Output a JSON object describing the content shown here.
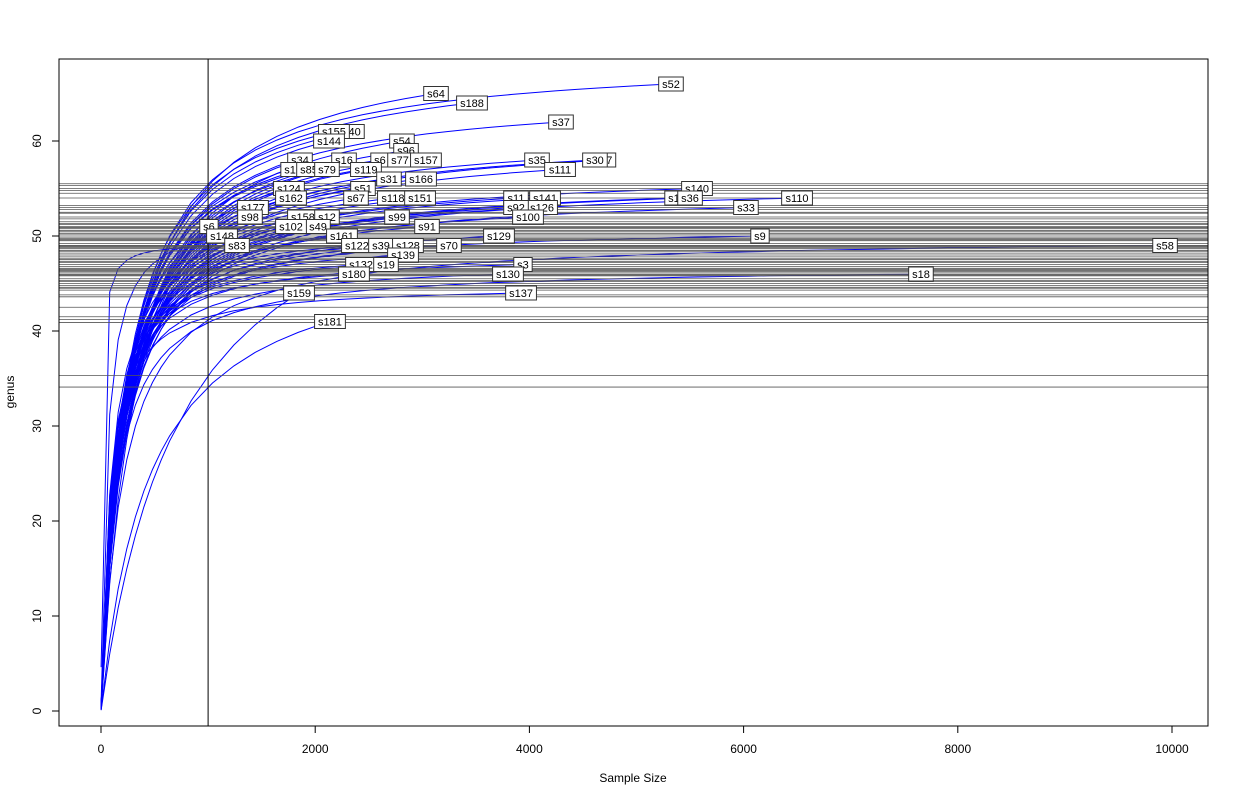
{
  "chart_data": {
    "type": "line",
    "title": "",
    "xlabel": "Sample Size",
    "ylabel": "genus",
    "xlim": [
      0,
      10000
    ],
    "ylim": [
      0,
      66
    ],
    "xticks": [
      "0",
      "2000",
      "4000",
      "6000",
      "8000",
      "10000"
    ],
    "yticks": [
      "0",
      "10",
      "20",
      "30",
      "40",
      "50",
      "60"
    ],
    "grid": false,
    "vertical_reference_line": 1000,
    "colors": {
      "curve": "#0000ff",
      "reference_lines": "#555555",
      "frame": "#000000"
    },
    "series": [
      {
        "name": "s52",
        "sample_size": 5322,
        "richness": 66,
        "richness_at_1000": 55.5
      },
      {
        "name": "s64",
        "sample_size": 3128,
        "richness": 65,
        "richness_at_1000": 55.3
      },
      {
        "name": "s188",
        "sample_size": 3464,
        "richness": 64,
        "richness_at_1000": 54.8
      },
      {
        "name": "s37",
        "sample_size": 4295,
        "richness": 62,
        "richness_at_1000": 53.2
      },
      {
        "name": "s40",
        "sample_size": 2343,
        "richness": 61,
        "richness_at_1000": 54.5
      },
      {
        "name": "s155",
        "sample_size": 2175,
        "richness": 61,
        "richness_at_1000": 55.0
      },
      {
        "name": "s144",
        "sample_size": 2129,
        "richness": 60,
        "richness_at_1000": 54.0
      },
      {
        "name": "s54",
        "sample_size": 2810,
        "richness": 60,
        "richness_at_1000": 52.0
      },
      {
        "name": "s96",
        "sample_size": 2848,
        "richness": 59,
        "richness_at_1000": 51.5
      },
      {
        "name": "s34",
        "sample_size": 1858,
        "richness": 58,
        "richness_at_1000": 53.0
      },
      {
        "name": "s6",
        "sample_size": 2605,
        "richness": 58,
        "richness_at_1000": 51.8
      },
      {
        "name": "s16",
        "sample_size": 2269,
        "richness": 58,
        "richness_at_1000": 52.5
      },
      {
        "name": "s77",
        "sample_size": 2792,
        "richness": 58,
        "richness_at_1000": 51.0
      },
      {
        "name": "s157",
        "sample_size": 3034,
        "richness": 58,
        "richness_at_1000": 50.8
      },
      {
        "name": "s35",
        "sample_size": 4071,
        "richness": 58,
        "richness_at_1000": 50.2
      },
      {
        "name": "s7",
        "sample_size": 4720,
        "richness": 58,
        "richness_at_1000": 49.0
      },
      {
        "name": "s30",
        "sample_size": 4612,
        "richness": 58,
        "richness_at_1000": 49.5
      },
      {
        "name": "s1",
        "sample_size": 1765,
        "richness": 57,
        "richness_at_1000": 52.8
      },
      {
        "name": "s85",
        "sample_size": 1942,
        "richness": 57,
        "richness_at_1000": 52.4
      },
      {
        "name": "s79",
        "sample_size": 2110,
        "richness": 57,
        "richness_at_1000": 51.2
      },
      {
        "name": "s119",
        "sample_size": 2474,
        "richness": 57,
        "richness_at_1000": 50.5
      },
      {
        "name": "s111",
        "sample_size": 4286,
        "richness": 57,
        "richness_at_1000": 48.5
      },
      {
        "name": "s31",
        "sample_size": 2689,
        "richness": 56,
        "richness_at_1000": 50.0
      },
      {
        "name": "s166",
        "sample_size": 2988,
        "richness": 56,
        "richness_at_1000": 49.2
      },
      {
        "name": "s124",
        "sample_size": 1755,
        "richness": 55,
        "richness_at_1000": 51.3
      },
      {
        "name": "s51",
        "sample_size": 2446,
        "richness": 55,
        "richness_at_1000": 49.8
      },
      {
        "name": "s140",
        "sample_size": 5565,
        "richness": 55,
        "richness_at_1000": 47.5
      },
      {
        "name": "s162",
        "sample_size": 1774,
        "richness": 54,
        "richness_at_1000": 50.6
      },
      {
        "name": "s67",
        "sample_size": 2381,
        "richness": 54,
        "richness_at_1000": 49.0
      },
      {
        "name": "s118",
        "sample_size": 2726,
        "richness": 54,
        "richness_at_1000": 48.8
      },
      {
        "name": "s151",
        "sample_size": 2979,
        "richness": 54,
        "richness_at_1000": 48.0
      },
      {
        "name": "s11",
        "sample_size": 3875,
        "richness": 54,
        "richness_at_1000": 47.6
      },
      {
        "name": "s141",
        "sample_size": 4146,
        "richness": 54,
        "richness_at_1000": 47.2
      },
      {
        "name": "s1",
        "sample_size": 5350,
        "richness": 54,
        "richness_at_1000": 46.5
      },
      {
        "name": "s36",
        "sample_size": 5500,
        "richness": 54,
        "richness_at_1000": 46.3
      },
      {
        "name": "s110",
        "sample_size": 6499,
        "richness": 54,
        "richness_at_1000": 45.8
      },
      {
        "name": "s177",
        "sample_size": 1419,
        "richness": 53,
        "richness_at_1000": 50.3
      },
      {
        "name": "s126",
        "sample_size": 4118,
        "richness": 53,
        "richness_at_1000": 46.8
      },
      {
        "name": "s92",
        "sample_size": 3875,
        "richness": 53,
        "richness_at_1000": 47.0
      },
      {
        "name": "s33",
        "sample_size": 6022,
        "richness": 53,
        "richness_at_1000": 45.5
      },
      {
        "name": "s98",
        "sample_size": 1391,
        "richness": 52,
        "richness_at_1000": 49.6
      },
      {
        "name": "s158",
        "sample_size": 1886,
        "richness": 52,
        "richness_at_1000": 48.7
      },
      {
        "name": "s12",
        "sample_size": 2110,
        "richness": 52,
        "richness_at_1000": 48.2
      },
      {
        "name": "s99",
        "sample_size": 2764,
        "richness": 52,
        "richness_at_1000": 47.3
      },
      {
        "name": "s100",
        "sample_size": 3987,
        "richness": 52,
        "richness_at_1000": 46.0
      },
      {
        "name": "s6",
        "sample_size": 1008,
        "richness": 51,
        "richness_at_1000": 50.9
      },
      {
        "name": "s49",
        "sample_size": 2026,
        "richness": 51,
        "richness_at_1000": 47.8
      },
      {
        "name": "s102",
        "sample_size": 1774,
        "richness": 51,
        "richness_at_1000": 48.4
      },
      {
        "name": "s91",
        "sample_size": 3044,
        "richness": 51,
        "richness_at_1000": 46.2
      },
      {
        "name": "s148",
        "sample_size": 1130,
        "richness": 50,
        "richness_at_1000": 49.7
      },
      {
        "name": "s161",
        "sample_size": 2250,
        "richness": 50,
        "richness_at_1000": 46.6
      },
      {
        "name": "s129",
        "sample_size": 3716,
        "richness": 50,
        "richness_at_1000": 45.2
      },
      {
        "name": "s9",
        "sample_size": 6153,
        "richness": 50,
        "richness_at_1000": 44.8
      },
      {
        "name": "s83",
        "sample_size": 1270,
        "richness": 49,
        "richness_at_1000": 48.9
      },
      {
        "name": "s122",
        "sample_size": 2390,
        "richness": 49,
        "richness_at_1000": 46.4
      },
      {
        "name": "s39",
        "sample_size": 2614,
        "richness": 49,
        "richness_at_1000": 45.9
      },
      {
        "name": "s128",
        "sample_size": 2866,
        "richness": 49,
        "richness_at_1000": 45.3
      },
      {
        "name": "s70",
        "sample_size": 3249,
        "richness": 49,
        "richness_at_1000": 44.6
      },
      {
        "name": "s58",
        "sample_size": 9935,
        "richness": 49,
        "richness_at_1000": 41.2
      },
      {
        "name": "s139",
        "sample_size": 2820,
        "richness": 48,
        "richness_at_1000": 45.0
      },
      {
        "name": "s132",
        "sample_size": 2428,
        "richness": 47,
        "richness_at_1000": 44.5
      },
      {
        "name": "s19",
        "sample_size": 2661,
        "richness": 47,
        "richness_at_1000": 44.3
      },
      {
        "name": "s3",
        "sample_size": 3940,
        "richness": 47,
        "richness_at_1000": 43.6
      },
      {
        "name": "s180",
        "sample_size": 2362,
        "richness": 46,
        "richness_at_1000": 43.8
      },
      {
        "name": "s130",
        "sample_size": 3800,
        "richness": 46,
        "richness_at_1000": 42.5
      },
      {
        "name": "s18",
        "sample_size": 7656,
        "richness": 46,
        "richness_at_1000": 40.9
      },
      {
        "name": "s159",
        "sample_size": 1849,
        "richness": 44,
        "richness_at_1000": 35.3
      },
      {
        "name": "s137",
        "sample_size": 3922,
        "richness": 44,
        "richness_at_1000": 41.5
      },
      {
        "name": "s181",
        "sample_size": 2138,
        "richness": 41,
        "richness_at_1000": 34.1
      }
    ]
  }
}
